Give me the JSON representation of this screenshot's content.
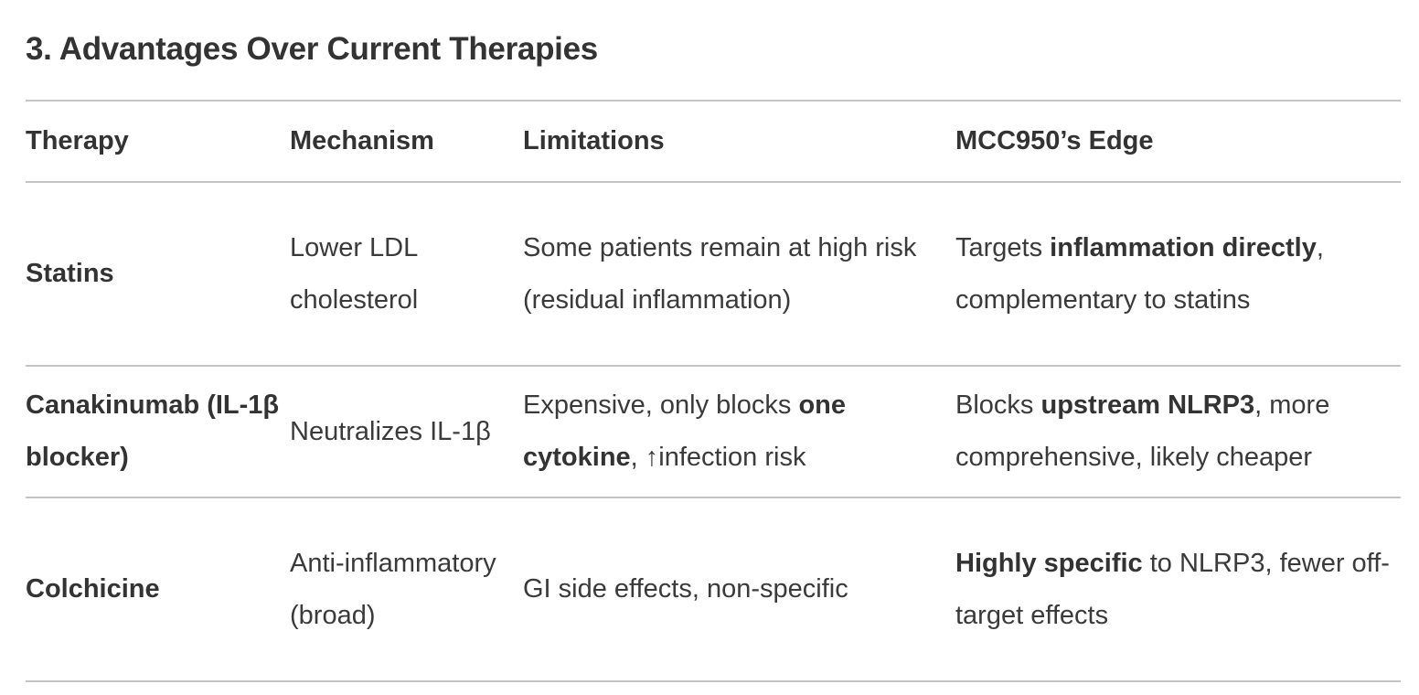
{
  "section": {
    "title": "3. Advantages Over Current Therapies"
  },
  "table": {
    "headers": {
      "therapy": "Therapy",
      "mechanism": "Mechanism",
      "limitations": "Limitations",
      "edge": "MCC950’s Edge"
    },
    "rows": [
      {
        "therapy": "Statins",
        "mechanism": "Lower LDL cholesterol",
        "limitations": {
          "text": "Some patients remain at high risk (residual inflammation)"
        },
        "edge": {
          "before": "Targets ",
          "bold": "inflammation directly",
          "after": ", complementary to statins"
        }
      },
      {
        "therapy": "Canakinumab (IL-1β blocker)",
        "mechanism": "Neutralizes IL-1β",
        "limitations": {
          "before": "Expensive, only blocks ",
          "bold": "one cytokine",
          "after": ", ↑infection risk"
        },
        "edge": {
          "before": "Blocks ",
          "bold": "upstream NLRP3",
          "after": ", more comprehensive, likely cheaper"
        }
      },
      {
        "therapy": "Colchicine",
        "mechanism": "Anti-inflammatory (broad)",
        "limitations": {
          "text": "GI side effects, non-specific"
        },
        "edge": {
          "before": "",
          "bold": "Highly specific",
          "after": " to NLRP3, fewer off-target effects"
        }
      }
    ]
  }
}
